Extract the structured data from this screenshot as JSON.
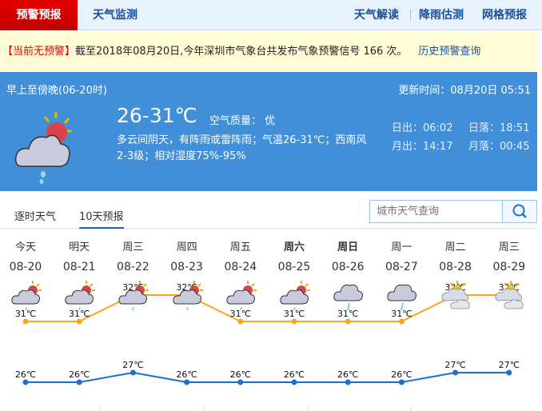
{
  "nav": {
    "active": "预警预报",
    "monitor": "天气监测",
    "right": [
      "天气解读",
      "降雨估测",
      "网格预报"
    ]
  },
  "warning": {
    "status": "【当前无预警】",
    "text": "截至2018年08月20日,今年深圳市气象台共发布气象预警信号 166 次。",
    "history_link": "历史预警查询"
  },
  "today": {
    "period": "早上至傍晚(06-20时)",
    "updated": "更新时间：08月20日 05:51",
    "temp": "26-31℃",
    "aqi": "空气质量： 优",
    "desc1": "多云间阴天，有阵雨或雷阵雨；气温26-31℃；西南风",
    "desc2": "2-3级；相对湿度75%-95%",
    "sunrise": "日出：06:02",
    "sunset": "日落：18:51",
    "moonrise": "月出：14:17",
    "moonset": "月落：00:45",
    "icon": "partly-cloudy-rain"
  },
  "tabs": {
    "hourly": "逐时天气",
    "ten_day": "10天预报",
    "active": "10天预报"
  },
  "search": {
    "placeholder": "城市天气查询"
  },
  "colors": {
    "high": "#f5a623",
    "low": "#1a6fd0",
    "panel": "#418ed9",
    "accent_red": "#e00000"
  },
  "forecast": [
    {
      "week": "今天",
      "date": "08-20",
      "icon": "partly-cloudy-rain",
      "high": 31,
      "low": 26,
      "high_label": "31℃",
      "low_label": "26℃"
    },
    {
      "week": "明天",
      "date": "08-21",
      "icon": "partly-cloudy-rain",
      "high": 31,
      "low": 26,
      "high_label": "31℃",
      "low_label": "26℃"
    },
    {
      "week": "周三",
      "date": "08-22",
      "icon": "partly-cloudy-rain",
      "high": 32,
      "low": 27,
      "high_label": "32℃",
      "low_label": "27℃"
    },
    {
      "week": "周四",
      "date": "08-23",
      "icon": "partly-cloudy-rain",
      "high": 32,
      "low": 26,
      "high_label": "32℃",
      "low_label": "26℃"
    },
    {
      "week": "周五",
      "date": "08-24",
      "icon": "partly-cloudy-rain",
      "high": 31,
      "low": 26,
      "high_label": "31℃",
      "low_label": "26℃"
    },
    {
      "week": "周六",
      "date": "08-25",
      "icon": "partly-cloudy-rain",
      "high": 31,
      "low": 26,
      "high_label": "31℃",
      "low_label": "26℃",
      "bold": true
    },
    {
      "week": "周日",
      "date": "08-26",
      "icon": "cloudy-rain",
      "high": 31,
      "low": 26,
      "high_label": "31℃",
      "low_label": "26℃",
      "bold": true
    },
    {
      "week": "周一",
      "date": "08-27",
      "icon": "cloudy-rain",
      "high": 31,
      "low": 26,
      "high_label": "31℃",
      "low_label": "26℃"
    },
    {
      "week": "周二",
      "date": "08-28",
      "icon": "partly-cloudy",
      "high": 32,
      "low": 27,
      "high_label": "32℃",
      "low_label": "27℃"
    },
    {
      "week": "周三",
      "date": "08-29",
      "icon": "partly-cloudy",
      "high": 32,
      "low": 27,
      "high_label": "32℃",
      "low_label": "27℃"
    }
  ]
}
